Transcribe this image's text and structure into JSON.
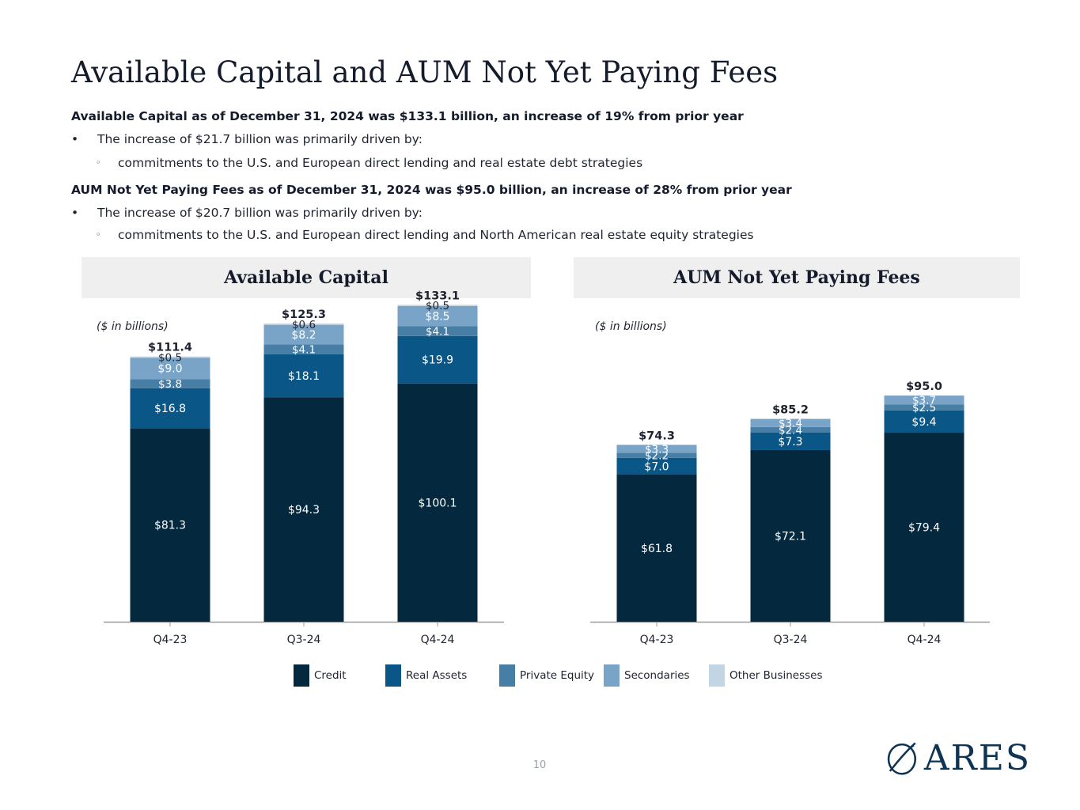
{
  "title": "Available Capital and AUM Not Yet Paying Fees",
  "summary": {
    "available_capital": {
      "heading": "Available Capital as of December 31, 2024 was $133.1 billion, an increase of 19% from prior year",
      "bullet": "The increase of $21.7 billion was primarily driven by:",
      "sub_bullet": "commitments to the U.S. and European direct lending and real estate debt strategies"
    },
    "aum_not_yet_paying": {
      "heading": "AUM Not Yet Paying Fees as of December 31, 2024 was $95.0 billion, an increase of 28% from prior year",
      "bullet": "The increase of $20.7 billion was primarily driven by:",
      "sub_bullet": "commitments to the U.S. and European direct lending and North American real estate equity strategies"
    },
    "bullet_mark": "•",
    "sub_bullet_mark": "◦"
  },
  "panels": {
    "left_header": "Available Capital",
    "right_header": "AUM Not Yet Paying Fees",
    "unit_label": "($ in billions)"
  },
  "colors": {
    "Credit": "#04293f",
    "Real Assets": "#0a5787",
    "Private Equity": "#467ea6",
    "Secondaries": "#7aa4c7",
    "Other Businesses": "#c2d5e5",
    "axis": "#9a9a9a"
  },
  "legend": [
    "Credit",
    "Real Assets",
    "Private Equity",
    "Secondaries",
    "Other Businesses"
  ],
  "chart_data": [
    {
      "type": "bar",
      "stacked": true,
      "title": "Available Capital",
      "ylabel": "($ in billions)",
      "categories": [
        "Q4-23",
        "Q3-24",
        "Q4-24"
      ],
      "series": [
        {
          "name": "Credit",
          "values": [
            81.3,
            94.3,
            100.1
          ],
          "labels": [
            "$81.3",
            "$94.3",
            "$100.1"
          ]
        },
        {
          "name": "Real Assets",
          "values": [
            16.8,
            18.1,
            19.9
          ],
          "labels": [
            "$16.8",
            "$18.1",
            "$19.9"
          ]
        },
        {
          "name": "Private Equity",
          "values": [
            3.8,
            4.1,
            4.1
          ],
          "labels": [
            "$3.8",
            "$4.1",
            "$4.1"
          ]
        },
        {
          "name": "Secondaries",
          "values": [
            9.0,
            8.2,
            8.5
          ],
          "labels": [
            "$9.0",
            "$8.2",
            "$8.5"
          ]
        },
        {
          "name": "Other Businesses",
          "values": [
            0.5,
            0.6,
            0.5
          ],
          "labels": [
            "$0.5",
            "$0.6",
            "$0.5"
          ]
        }
      ],
      "totals": [
        "$111.4",
        "$125.3",
        "$133.1"
      ]
    },
    {
      "type": "bar",
      "stacked": true,
      "title": "AUM Not Yet Paying Fees",
      "ylabel": "($ in billions)",
      "categories": [
        "Q4-23",
        "Q3-24",
        "Q4-24"
      ],
      "series": [
        {
          "name": "Credit",
          "values": [
            61.8,
            72.1,
            79.4
          ],
          "labels": [
            "$61.8",
            "$72.1",
            "$79.4"
          ]
        },
        {
          "name": "Real Assets",
          "values": [
            7.0,
            7.3,
            9.4
          ],
          "labels": [
            "$7.0",
            "$7.3",
            "$9.4"
          ]
        },
        {
          "name": "Private Equity",
          "values": [
            2.2,
            2.4,
            2.5
          ],
          "labels": [
            "$2.2",
            "$2.4",
            "$2.5"
          ]
        },
        {
          "name": "Secondaries",
          "values": [
            3.3,
            3.4,
            3.7
          ],
          "labels": [
            "$3.3",
            "$3.4",
            "$3.7"
          ]
        }
      ],
      "totals": [
        "$74.3",
        "$85.2",
        "$95.0"
      ]
    }
  ],
  "page_number": "10",
  "logo": {
    "text": "ARES"
  }
}
